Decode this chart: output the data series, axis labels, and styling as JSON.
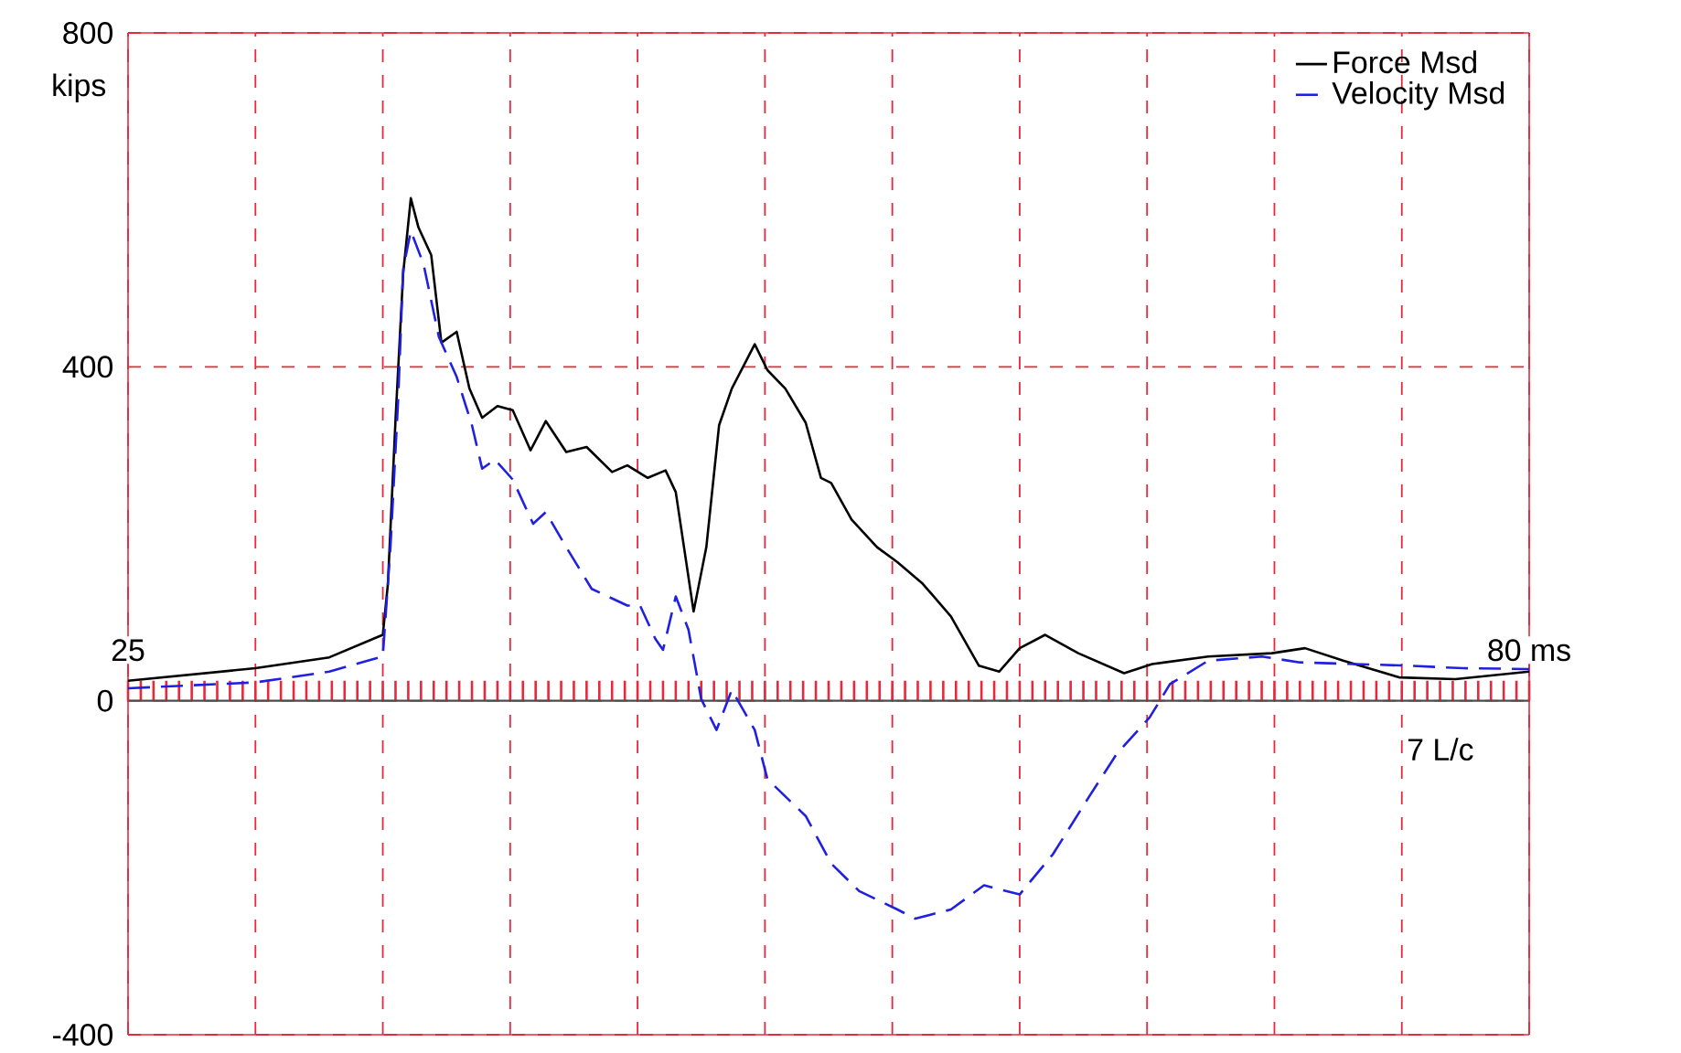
{
  "chart_data": {
    "type": "line",
    "ylabel": "kips",
    "annotations": [
      "7 L/c"
    ],
    "xlim": [
      25,
      80
    ],
    "ylim": [
      -400,
      800
    ],
    "xticks": [
      {
        "value": 25,
        "label": "25"
      },
      {
        "value": 30,
        "label": null
      },
      {
        "value": 35,
        "label": null
      },
      {
        "value": 40,
        "label": null
      },
      {
        "value": 45,
        "label": null
      },
      {
        "value": 50,
        "label": null
      },
      {
        "value": 55,
        "label": null
      },
      {
        "value": 60,
        "label": null
      },
      {
        "value": 65,
        "label": null
      },
      {
        "value": 70,
        "label": null
      },
      {
        "value": 75,
        "label": null
      },
      {
        "value": 80,
        "label": "80 ms"
      }
    ],
    "yticks": [
      -400,
      0,
      400,
      800
    ],
    "grid": true,
    "legend": "top right",
    "marker": "none",
    "series": [
      {
        "name": "Force Msd",
        "color": "#000000",
        "line_style": "solid",
        "x": [
          25.0,
          30.0,
          32.9,
          35.0,
          35.2,
          35.5,
          35.8,
          36.1,
          36.4,
          36.9,
          37.3,
          37.9,
          38.4,
          38.9,
          39.5,
          40.1,
          40.8,
          41.4,
          42.2,
          43.0,
          44.0,
          44.6,
          45.4,
          46.1,
          46.5,
          47.2,
          47.7,
          48.2,
          48.7,
          49.6,
          50.1,
          50.8,
          51.6,
          52.2,
          52.6,
          53.4,
          54.4,
          55.2,
          56.2,
          57.3,
          58.4,
          59.2,
          60.0,
          61.0,
          62.3,
          64.1,
          65.2,
          67.4,
          69.9,
          71.2,
          72.7,
          74.9,
          77.1,
          80.0
        ],
        "values": [
          24,
          39,
          52,
          79,
          140,
          337,
          512,
          602,
          567,
          534,
          429,
          442,
          374,
          339,
          353,
          348,
          300,
          335,
          298,
          304,
          274,
          282,
          267,
          276,
          250,
          107,
          184,
          330,
          374,
          427,
          396,
          374,
          333,
          267,
          261,
          217,
          184,
          166,
          140,
          101,
          42,
          35,
          63,
          79,
          57,
          33,
          44,
          53,
          57,
          63,
          48,
          28,
          26,
          35
        ]
      },
      {
        "name": "Velocity Msd",
        "color": "#2020e0",
        "line_style": "dashed",
        "x": [
          25.0,
          30.0,
          32.9,
          35.0,
          35.3,
          35.6,
          35.8,
          36.1,
          36.6,
          37.2,
          37.9,
          38.5,
          38.9,
          39.4,
          40.1,
          40.9,
          41.4,
          42.2,
          43.2,
          44.6,
          45.1,
          45.7,
          46.0,
          46.5,
          47.0,
          47.5,
          48.1,
          48.7,
          49.6,
          50.1,
          51.6,
          52.6,
          53.7,
          55.2,
          55.9,
          57.3,
          58.6,
          60.0,
          61.3,
          62.7,
          63.8,
          65.1,
          65.9,
          67.4,
          69.5,
          71.0,
          75.3,
          77.4,
          80.0
        ],
        "values": [
          15,
          22,
          35,
          53,
          184,
          359,
          517,
          563,
          523,
          436,
          388,
          330,
          278,
          289,
          265,
          212,
          226,
          184,
          134,
          114,
          114,
          74,
          61,
          125,
          85,
          2,
          -35,
          13,
          -35,
          -94,
          -138,
          -195,
          -228,
          -250,
          -261,
          -250,
          -221,
          -232,
          -184,
          -116,
          -64,
          -20,
          20,
          48,
          53,
          46,
          42,
          39,
          38
        ]
      }
    ]
  }
}
